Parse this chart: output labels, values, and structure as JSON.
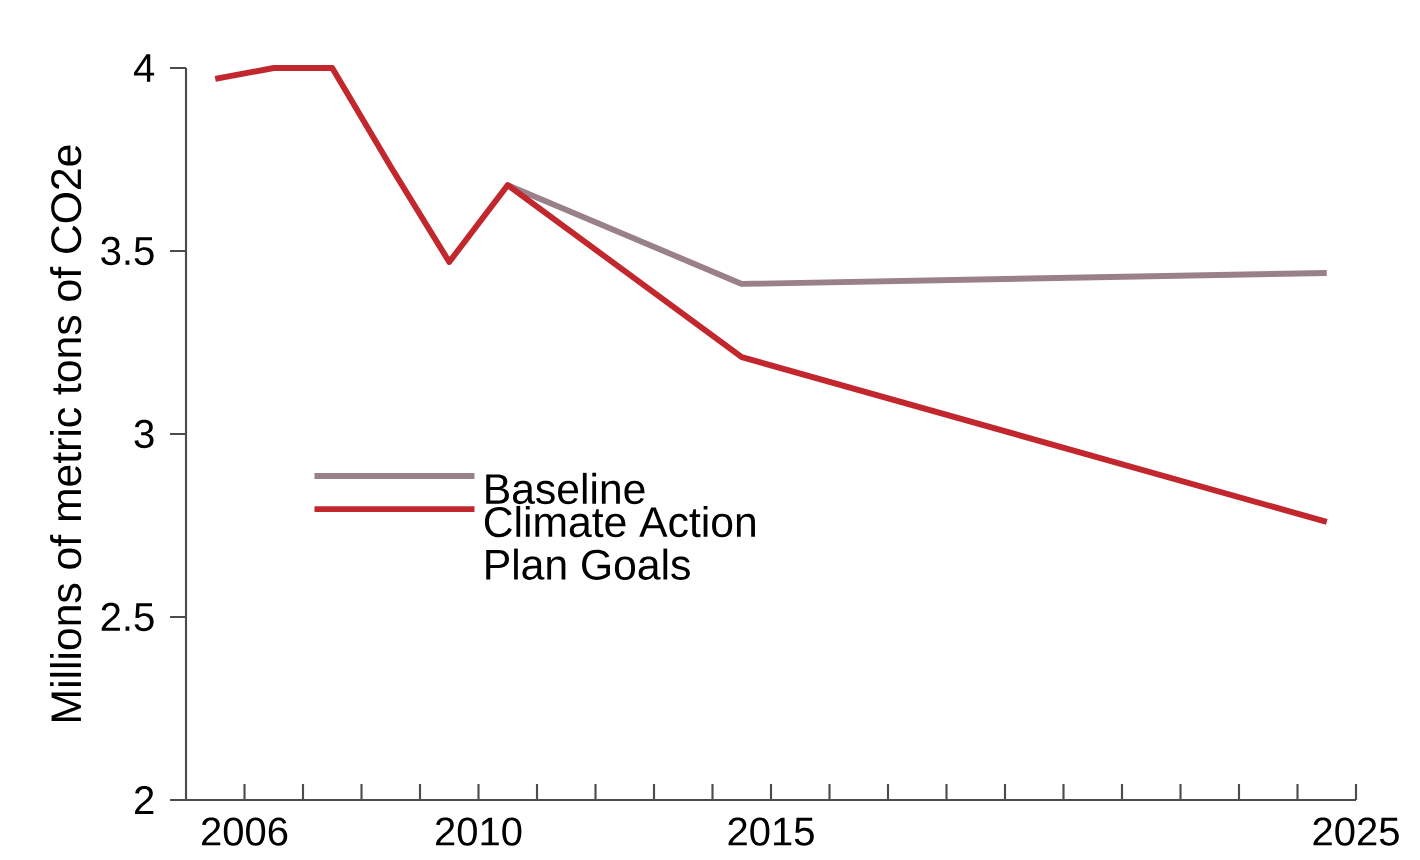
{
  "chart_data": {
    "type": "line",
    "ylabel": "Millions of metric tons of CO2e",
    "xlim": [
      2005,
      2025
    ],
    "ylim": [
      2,
      4
    ],
    "xticks": [
      2006,
      {
        "value": 2007,
        "label": null
      },
      {
        "value": 2008,
        "label": null
      },
      {
        "value": 2009,
        "label": null
      },
      2010,
      {
        "value": 2011,
        "label": null
      },
      {
        "value": 2012,
        "label": null
      },
      {
        "value": 2013,
        "label": null
      },
      {
        "value": 2014,
        "label": null
      },
      2015,
      {
        "value": 2016,
        "label": null
      },
      {
        "value": 2017,
        "label": null
      },
      {
        "value": 2018,
        "label": null
      },
      {
        "value": 2019,
        "label": null
      },
      {
        "value": 2020,
        "label": null
      },
      {
        "value": 2021,
        "label": null
      },
      {
        "value": 2022,
        "label": null
      },
      {
        "value": 2023,
        "label": null
      },
      {
        "value": 2024,
        "label": null
      },
      2025
    ],
    "yticks": [
      2,
      2.5,
      3,
      3.5,
      4
    ],
    "grid": false,
    "legend": "left",
    "marker": "none",
    "line_style": "solid",
    "series": [
      {
        "name": "Baseline",
        "color": "#9a8088",
        "x": [
          2010.5,
          2014.5,
          2024.5
        ],
        "values": [
          3.68,
          3.41,
          3.44
        ]
      },
      {
        "name": "Climate Action Plan Goals",
        "color": "#c1272d",
        "x": [
          2005.5,
          2006.5,
          2007.5,
          2008.5,
          2009.5,
          2010.5,
          2014.5,
          2024.5
        ],
        "values": [
          3.97,
          4.0,
          4.0,
          3.73,
          3.47,
          3.68,
          3.21,
          2.76
        ]
      }
    ]
  }
}
